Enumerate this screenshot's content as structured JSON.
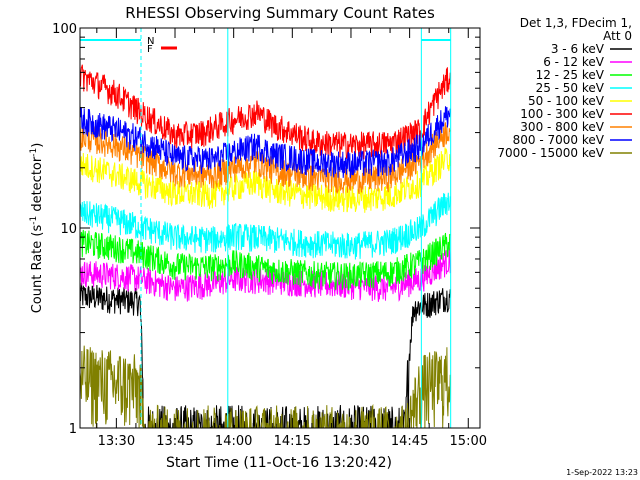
{
  "chart_data": {
    "type": "line",
    "title": "RHESSI Observing Summary Count Rates",
    "xlabel": "Start Time (11-Oct-16 13:20:42)",
    "ylabel_main": "Count Rate (s",
    "ylabel_sup1": "-1",
    "ylabel_mid": " detector",
    "ylabel_sup2": "-1",
    "ylabel_end": ")",
    "y_scale": "log",
    "ylim": [
      1,
      100
    ],
    "y_ticks": [
      {
        "v": 1,
        "label": "1"
      },
      {
        "v": 10,
        "label": "10"
      },
      {
        "v": 100,
        "label": "100"
      }
    ],
    "xlim_min": [
      20.7,
      81
    ],
    "x_ticks": [
      {
        "m": 30,
        "label": "13:30"
      },
      {
        "m": 45,
        "label": "13:45"
      },
      {
        "m": 60,
        "label": "14:00"
      },
      {
        "m": 75,
        "label": "14:15"
      },
      {
        "m": 90,
        "label": "14:30"
      },
      {
        "m": 105,
        "label": "14:45"
      },
      {
        "m": 120,
        "label": "15:00"
      }
    ],
    "x_range_max": 123,
    "legend_header": [
      "Det 1,3, FDecim 1,",
      "Att 0"
    ],
    "legend_position": "right",
    "flags": {
      "n_label": "N",
      "f_label": "F"
    },
    "night_intervals_min": [
      [
        20.7,
        36.3
      ],
      [
        108,
        115.5
      ]
    ],
    "series": [
      {
        "name": "3 - 6 keV",
        "color": "#000000",
        "profile": [
          [
            20.7,
            4.6
          ],
          [
            30,
            4.4
          ],
          [
            36,
            4.3
          ],
          [
            37,
            0.9
          ],
          [
            104,
            0.9
          ],
          [
            106,
            4.0
          ],
          [
            110,
            4.2
          ],
          [
            115.5,
            4.6
          ]
        ]
      },
      {
        "name": "6 - 12 keV",
        "color": "#ff00ff",
        "profile": [
          [
            20.7,
            6.0
          ],
          [
            30,
            5.8
          ],
          [
            36,
            5.6
          ],
          [
            45,
            5.0
          ],
          [
            55,
            5.3
          ],
          [
            60,
            5.6
          ],
          [
            70,
            5.5
          ],
          [
            80,
            5.3
          ],
          [
            90,
            5.2
          ],
          [
            100,
            5.0
          ],
          [
            108,
            5.6
          ],
          [
            115.5,
            7.0
          ]
        ]
      },
      {
        "name": "12 - 25 keV",
        "color": "#00ff00",
        "profile": [
          [
            20.7,
            8.5
          ],
          [
            30,
            8.0
          ],
          [
            36,
            7.5
          ],
          [
            45,
            6.5
          ],
          [
            55,
            6.4
          ],
          [
            60,
            6.7
          ],
          [
            70,
            6.2
          ],
          [
            80,
            5.9
          ],
          [
            90,
            5.8
          ],
          [
            100,
            6.0
          ],
          [
            108,
            6.8
          ],
          [
            115.5,
            8.5
          ]
        ]
      },
      {
        "name": "25 - 50 keV",
        "color": "#00ffff",
        "profile": [
          [
            20.7,
            12.0
          ],
          [
            30,
            11.0
          ],
          [
            36,
            10.2
          ],
          [
            45,
            9.0
          ],
          [
            55,
            8.8
          ],
          [
            60,
            9.2
          ],
          [
            70,
            8.8
          ],
          [
            80,
            8.4
          ],
          [
            90,
            8.2
          ],
          [
            100,
            8.6
          ],
          [
            108,
            10.0
          ],
          [
            115.5,
            14.0
          ]
        ]
      },
      {
        "name": "50 - 100 keV",
        "color": "#ffff00",
        "profile": [
          [
            20.7,
            21.0
          ],
          [
            30,
            18.5
          ],
          [
            36,
            17.0
          ],
          [
            45,
            15.0
          ],
          [
            55,
            14.8
          ],
          [
            60,
            16.0
          ],
          [
            66,
            17.0
          ],
          [
            70,
            15.5
          ],
          [
            80,
            14.5
          ],
          [
            90,
            14.0
          ],
          [
            100,
            14.5
          ],
          [
            108,
            17.0
          ],
          [
            115.5,
            23.0
          ]
        ]
      },
      {
        "name": "100 - 300 keV",
        "color": "#ff0000",
        "profile": [
          [
            20.7,
            58.0
          ],
          [
            30,
            47.0
          ],
          [
            36,
            38.0
          ],
          [
            45,
            29.0
          ],
          [
            52,
            30.0
          ],
          [
            60,
            35.0
          ],
          [
            66,
            38.0
          ],
          [
            70,
            33.0
          ],
          [
            80,
            27.0
          ],
          [
            90,
            26.0
          ],
          [
            100,
            26.5
          ],
          [
            108,
            31.0
          ],
          [
            115.5,
            58.0
          ]
        ]
      },
      {
        "name": "300 - 800 keV",
        "color": "#ff8000",
        "profile": [
          [
            20.7,
            29.0
          ],
          [
            30,
            26.0
          ],
          [
            36,
            23.0
          ],
          [
            45,
            19.0
          ],
          [
            55,
            18.5
          ],
          [
            60,
            20.0
          ],
          [
            66,
            21.5
          ],
          [
            70,
            19.5
          ],
          [
            80,
            18.0
          ],
          [
            90,
            17.5
          ],
          [
            100,
            18.0
          ],
          [
            108,
            22.0
          ],
          [
            115.5,
            32.0
          ]
        ]
      },
      {
        "name": "800 - 7000 keV",
        "color": "#0000ff",
        "profile": [
          [
            20.7,
            35.0
          ],
          [
            30,
            31.0
          ],
          [
            36,
            28.0
          ],
          [
            45,
            22.5
          ],
          [
            55,
            22.0
          ],
          [
            60,
            24.0
          ],
          [
            66,
            26.0
          ],
          [
            70,
            23.5
          ],
          [
            80,
            21.5
          ],
          [
            90,
            21.0
          ],
          [
            100,
            21.5
          ],
          [
            108,
            26.0
          ],
          [
            115.5,
            38.0
          ]
        ]
      },
      {
        "name": "7000 - 15000 keV",
        "color": "#808000",
        "profile": [
          [
            20.7,
            1.8
          ],
          [
            30,
            1.7
          ],
          [
            36,
            1.6
          ],
          [
            37,
            0.9
          ],
          [
            104,
            0.9
          ],
          [
            108,
            1.6
          ],
          [
            115.5,
            1.8
          ]
        ]
      }
    ]
  },
  "footer_timestamp": "1-Sep-2022 13:23"
}
